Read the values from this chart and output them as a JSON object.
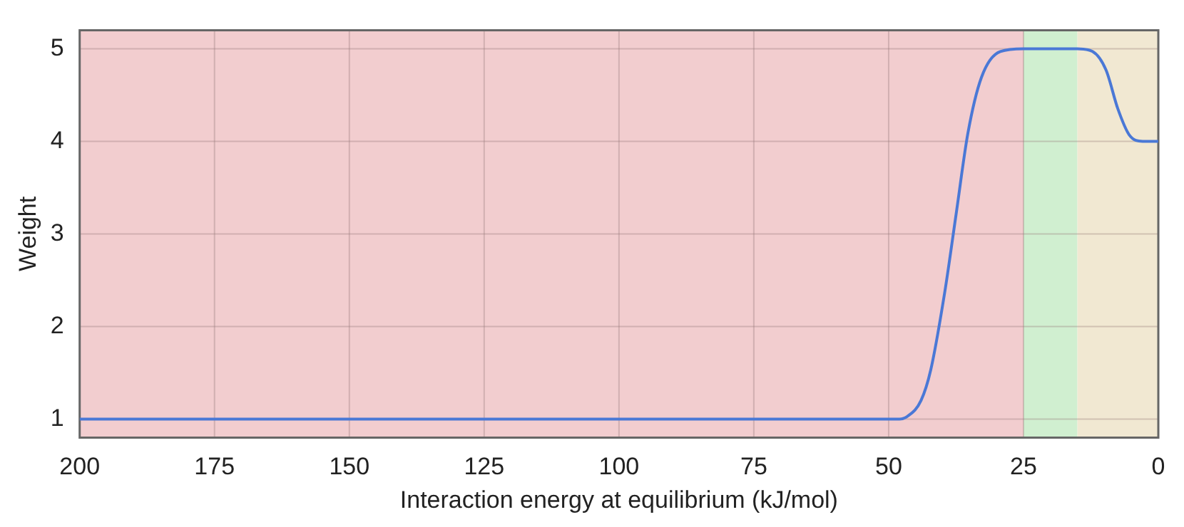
{
  "chart_data": {
    "type": "line",
    "xlabel": "Interaction energy at equilibrium (kJ/mol)",
    "ylabel": "Weight",
    "x": [
      200,
      100,
      48,
      46.5,
      44,
      42.2,
      39.6,
      37.5,
      35.3,
      32.8,
      29.3,
      25,
      20,
      15,
      12.2,
      9.7,
      7.5,
      5.4,
      2.9,
      0
    ],
    "series": [
      {
        "color": "#4a78d6",
        "values": [
          1,
          1,
          1,
          1.03,
          1.2,
          1.53,
          2.37,
          3.21,
          4.09,
          4.69,
          4.97,
          5,
          5,
          5,
          4.97,
          4.77,
          4.35,
          4.07,
          4,
          4
        ]
      }
    ],
    "xlim": [
      200,
      0
    ],
    "xticks": [
      200,
      175,
      150,
      125,
      100,
      75,
      50,
      25,
      0
    ],
    "ylim": [
      0.8,
      5.2
    ],
    "yticks": [
      1,
      2,
      3,
      4,
      5
    ],
    "bands": [
      {
        "axis": "x",
        "from": 200,
        "to": 25,
        "color": "#f2cdcf"
      },
      {
        "axis": "x",
        "from": 25,
        "to": 15,
        "color": "#d0efd0"
      },
      {
        "axis": "x",
        "from": 15,
        "to": 0,
        "color": "#f1e8d2"
      }
    ],
    "grid": true,
    "legend": false,
    "marker": "none",
    "line_style": "solid"
  }
}
